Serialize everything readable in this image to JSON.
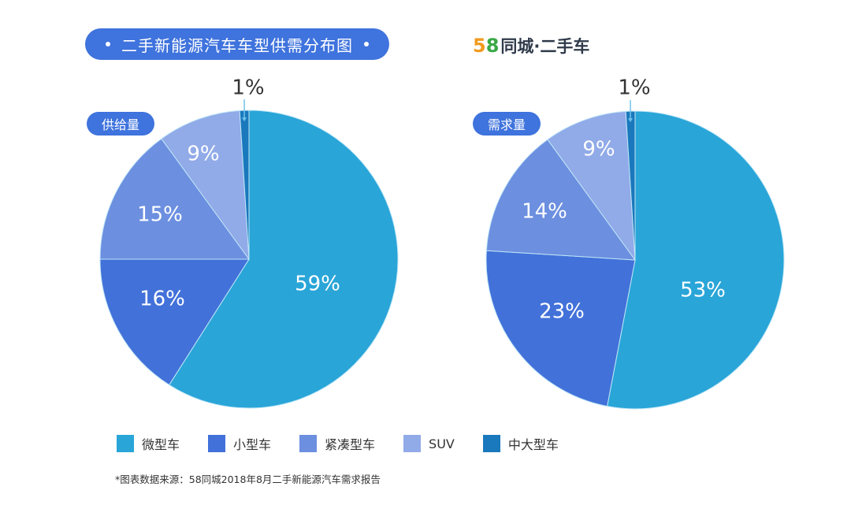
{
  "header": {
    "title": "二手新能源汽车车型供需分布图",
    "brand_digit_1": "5",
    "brand_digit_2": "8",
    "brand_text": "同城·二手车"
  },
  "colors": {
    "title_bg": "#3f73dd",
    "micro": "#29a5d8",
    "small": "#4271d9",
    "compact": "#6c8fe0",
    "suv": "#91aae8",
    "midlarge": "#1a78bc"
  },
  "chart_data": [
    {
      "type": "pie",
      "title": "供给量",
      "categories": [
        "微型车",
        "小型车",
        "紧凑型车",
        "SUV",
        "中大型车"
      ],
      "values": [
        59,
        16,
        15,
        9,
        1
      ],
      "labels": [
        "59%",
        "16%",
        "15%",
        "9%",
        "1%"
      ]
    },
    {
      "type": "pie",
      "title": "需求量",
      "categories": [
        "微型车",
        "小型车",
        "紧凑型车",
        "SUV",
        "中大型车"
      ],
      "values": [
        53,
        23,
        14,
        9,
        1
      ],
      "labels": [
        "53%",
        "23%",
        "14%",
        "9%",
        "1%"
      ]
    }
  ],
  "legend": [
    {
      "label": "微型车",
      "color": "#29a5d8"
    },
    {
      "label": "小型车",
      "color": "#4271d9"
    },
    {
      "label": "紧凑型车",
      "color": "#6c8fe0"
    },
    {
      "label": "SUV",
      "color": "#91aae8"
    },
    {
      "label": "中大型车",
      "color": "#1a78bc"
    }
  ],
  "footer": {
    "source": "*图表数据来源：58同城2018年8月二手新能源汽车需求报告"
  }
}
